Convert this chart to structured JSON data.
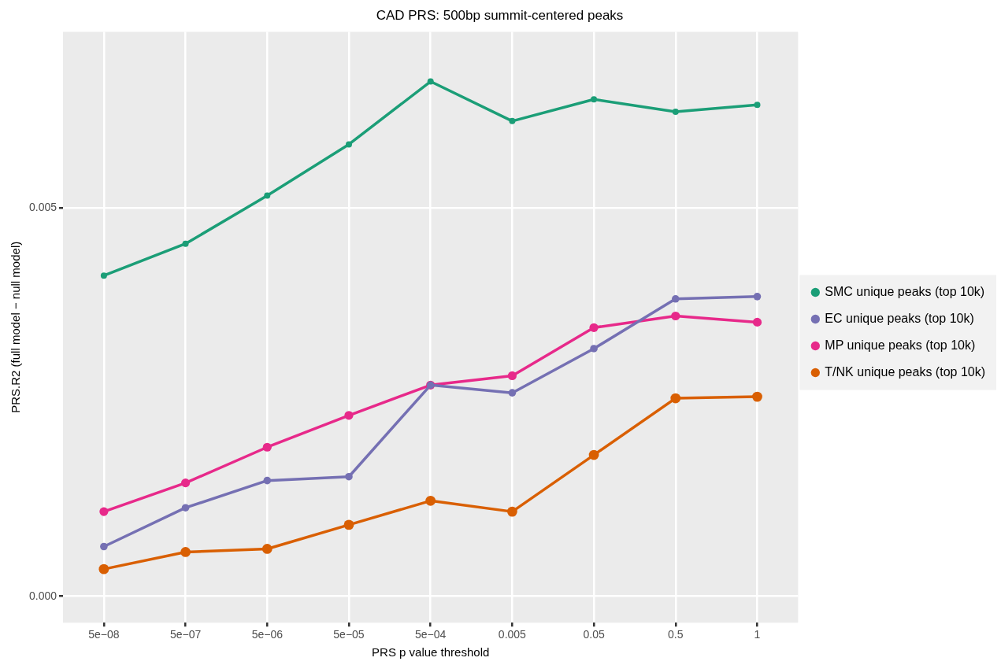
{
  "chart_data": {
    "type": "line",
    "title": "CAD PRS: 500bp summit-centered peaks",
    "xlabel": "PRS p value threshold",
    "ylabel": "PRS.R2 (full model − null model)",
    "categories": [
      "5e−08",
      "5e−07",
      "5e−06",
      "5e−05",
      "5e−04",
      "0.005",
      "0.05",
      "0.5",
      "1"
    ],
    "ylim": [
      -0.00034,
      0.00727
    ],
    "yticks": [
      {
        "value": 0,
        "label": "0.000"
      },
      {
        "value": 0.005,
        "label": "0.005"
      }
    ],
    "grid": true,
    "legend": "right",
    "marker": "circle",
    "line_style": "solid",
    "series": [
      {
        "name": "SMC unique peaks (top 10k)",
        "color": "#1b9e77",
        "values": [
          0.00413,
          0.00454,
          0.00516,
          0.00582,
          0.00663,
          0.00612,
          0.0064,
          0.00624,
          0.00633
        ]
      },
      {
        "name": "EC unique peaks (top 10k)",
        "color": "#7570b3",
        "values": [
          0.00064,
          0.00114,
          0.00149,
          0.00154,
          0.00272,
          0.00262,
          0.00319,
          0.00383,
          0.00386
        ]
      },
      {
        "name": "MP unique peaks (top 10k)",
        "color": "#e7298a",
        "values": [
          0.00109,
          0.00146,
          0.00192,
          0.00233,
          0.00272,
          0.00284,
          0.00346,
          0.00361,
          0.00353
        ]
      },
      {
        "name": "T/NK unique peaks (top 10k)",
        "color": "#d95f02",
        "values": [
          0.00035,
          0.00057,
          0.00061,
          0.00092,
          0.00123,
          0.00109,
          0.00182,
          0.00255,
          0.00257
        ]
      }
    ]
  }
}
